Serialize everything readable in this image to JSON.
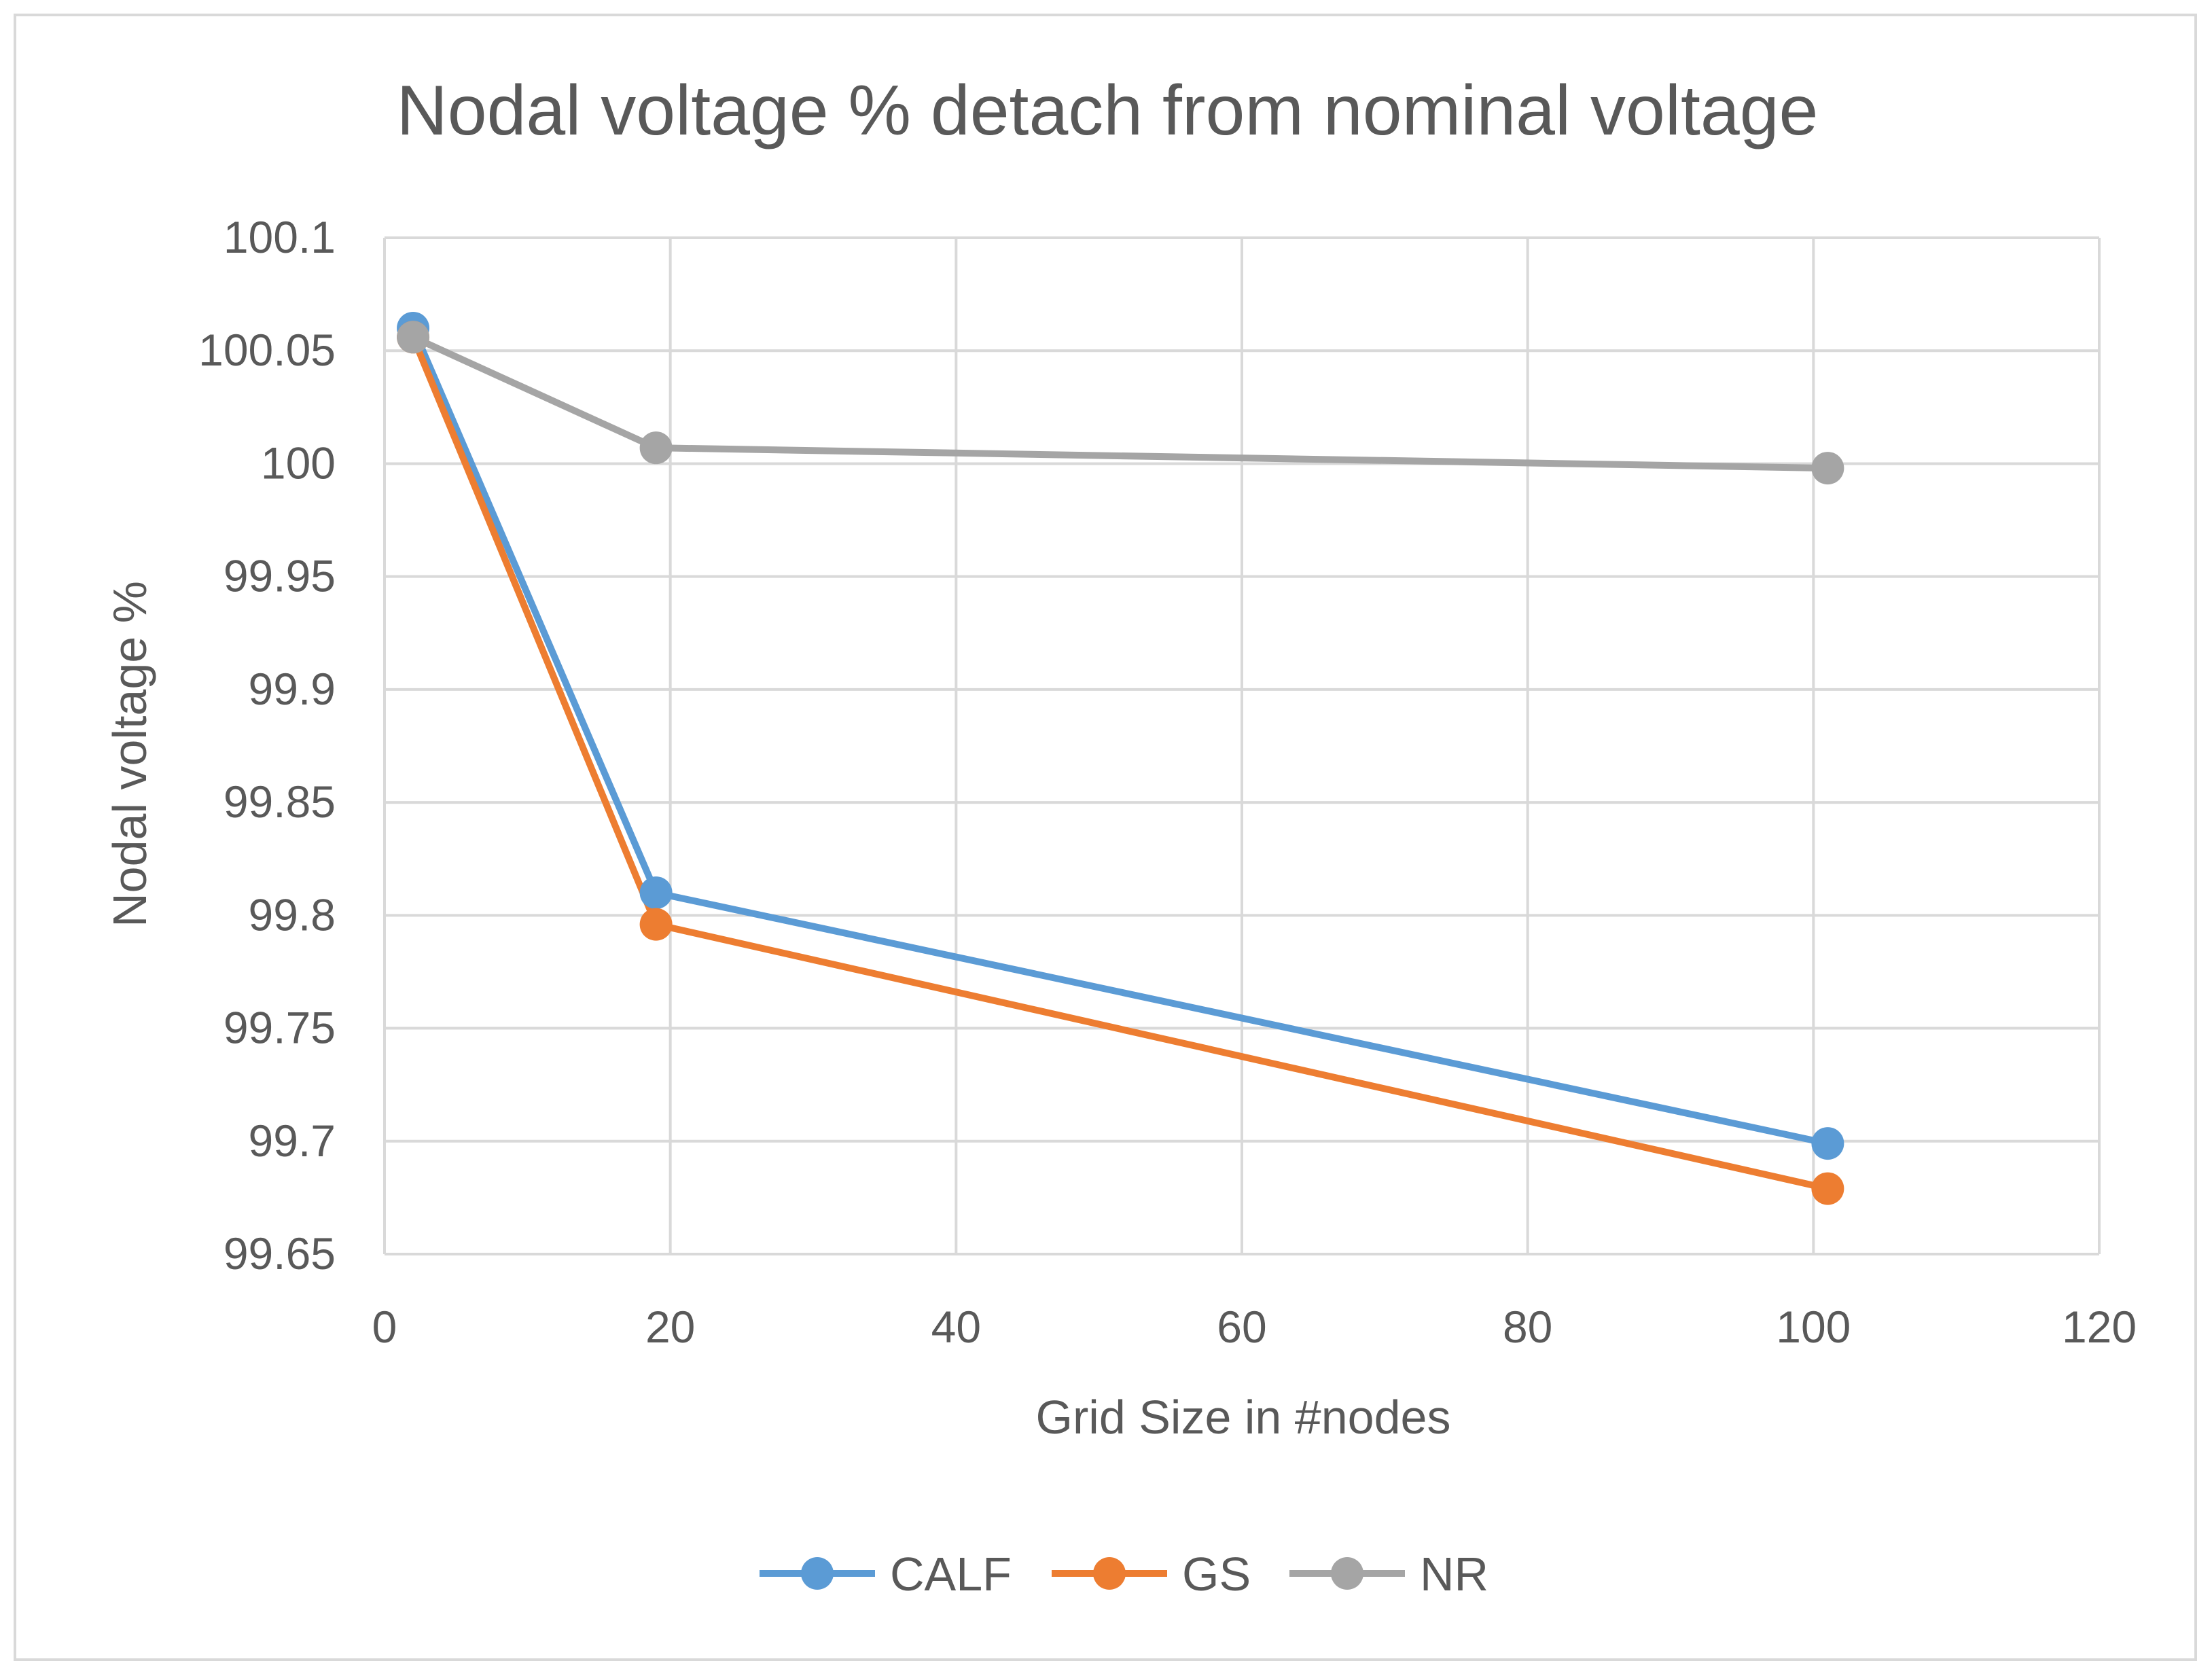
{
  "chart_data": {
    "type": "line",
    "title": "Nodal voltage % detach from nominal voltage",
    "xlabel": "Grid Size in #nodes",
    "ylabel": "Nodal voltage %",
    "xlim": [
      0,
      120
    ],
    "ylim": [
      99.65,
      100.1
    ],
    "x_ticks": [
      0,
      20,
      40,
      60,
      80,
      100,
      120
    ],
    "x_tick_labels": [
      "0",
      "20",
      "40",
      "60",
      "80",
      "100",
      "120"
    ],
    "y_ticks": [
      99.65,
      99.7,
      99.75,
      99.8,
      99.85,
      99.9,
      99.95,
      100,
      100.05,
      100.1
    ],
    "y_tick_labels": [
      "99.65",
      "99.7",
      "99.75",
      "99.8",
      "99.85",
      "99.9",
      "99.95",
      "100",
      "100.05",
      "100.1"
    ],
    "grid": true,
    "legend_position": "bottom",
    "series": [
      {
        "name": "CALF",
        "color": "#5b9bd5",
        "x": [
          2,
          19,
          101
        ],
        "y": [
          100.06,
          99.81,
          99.699
        ]
      },
      {
        "name": "GS",
        "color": "#ed7d31",
        "x": [
          2,
          19,
          101
        ],
        "y": [
          100.056,
          99.796,
          99.679
        ]
      },
      {
        "name": "NR",
        "color": "#a5a5a5",
        "x": [
          2,
          19,
          101
        ],
        "y": [
          100.056,
          100.007,
          99.998
        ]
      }
    ]
  }
}
